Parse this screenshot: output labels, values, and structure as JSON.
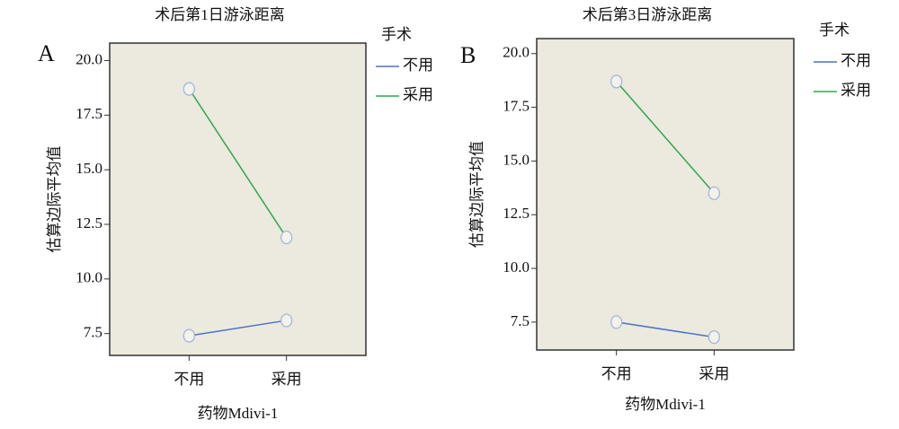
{
  "chart_data": [
    {
      "type": "line",
      "panel_label": "A",
      "title": "术后第1日游泳距离",
      "x_label": "药物Mdivi-1",
      "y_label": "估算边际平均值",
      "legend_title": "手术",
      "categories": [
        "不用",
        "采用"
      ],
      "series": [
        {
          "name": "不用",
          "color": "#4a74c4",
          "values": [
            7.4,
            8.1
          ]
        },
        {
          "name": "采用",
          "color": "#2ea84a",
          "values": [
            18.7,
            11.9
          ]
        }
      ],
      "ylim": [
        6.5,
        20.8
      ],
      "yticks": [
        7.5,
        {
          "value": 10,
          "label": "10.0"
        },
        12.5,
        {
          "value": 15,
          "label": "15.0"
        },
        17.5,
        {
          "value": 20,
          "label": "20.0"
        }
      ]
    },
    {
      "type": "line",
      "panel_label": "B",
      "title": "术后第3日游泳距离",
      "x_label": "药物Mdivi-1",
      "y_label": "估算边际平均值",
      "legend_title": "手术",
      "categories": [
        "不用",
        "采用"
      ],
      "series": [
        {
          "name": "不用",
          "color": "#4a74c4",
          "values": [
            7.5,
            6.8
          ]
        },
        {
          "name": "采用",
          "color": "#2ea84a",
          "values": [
            18.7,
            13.5
          ]
        }
      ],
      "ylim": [
        6.2,
        20.7
      ],
      "yticks": [
        7.5,
        {
          "value": 10,
          "label": "10.0"
        },
        12.5,
        {
          "value": 15,
          "label": "15.0"
        },
        17.5,
        {
          "value": 20,
          "label": "20.0"
        }
      ]
    }
  ]
}
